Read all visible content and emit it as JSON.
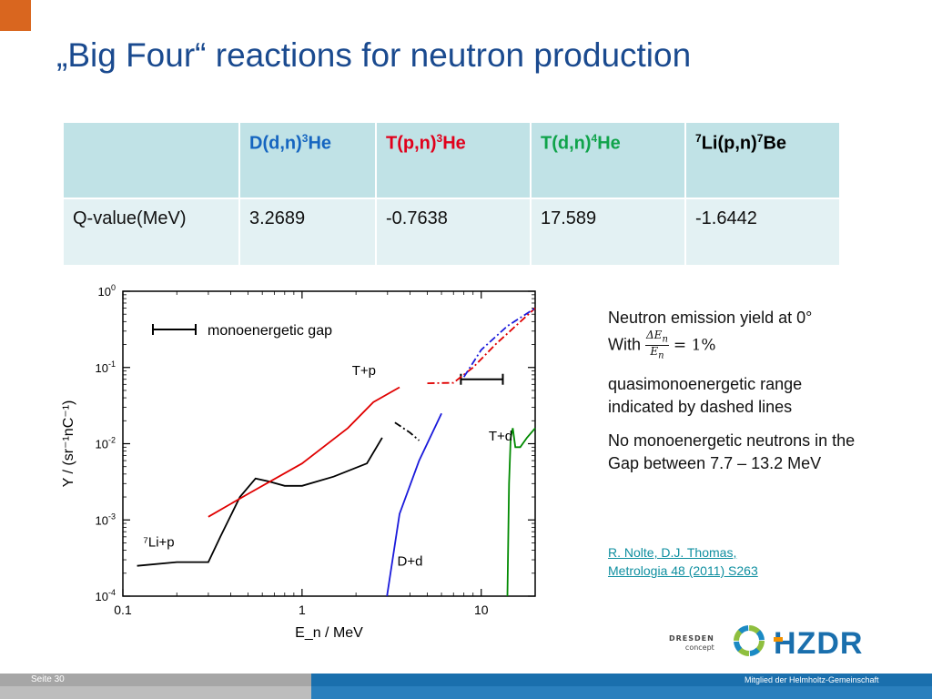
{
  "title": "„Big Four“ reactions for neutron production",
  "table": {
    "headers": [
      {
        "pre": "D(d,n)",
        "sup": "3",
        "post": "He",
        "color": "#1565c0"
      },
      {
        "pre": "T(p,n)",
        "sup": "3",
        "post": "He",
        "color": "#e0001b"
      },
      {
        "pre": "T(d,n)",
        "sup": "4",
        "post": "He",
        "color": "#0fa34a"
      },
      {
        "pre": "",
        "sup": "7",
        "mid": "Li(p,n)",
        "sup2": "7",
        "post": "Be",
        "color": "#000000"
      }
    ],
    "row_label": "Q-value(MeV)",
    "values": [
      "3.2689",
      "-0.7638",
      "17.589",
      "-1.6442"
    ]
  },
  "notes": {
    "line1": "Neutron emission yield at 0°",
    "with": "With",
    "frac_num": "ΔE",
    "frac_den": "E",
    "frac_sub": "n",
    "eq": "= 1%",
    "line3": "quasimonoenergetic range",
    "line4": "indicated by dashed lines",
    "line5": "No monoenergetic neutrons in the",
    "line6": "Gap between 7.7 – 13.2 MeV"
  },
  "reference": {
    "line1": "R. Nolte, D.J. Thomas,",
    "line2": "Metrologia 48 (2011) S263"
  },
  "logos": {
    "dresden_line1": "DRESDEN",
    "dresden_line2": "concept",
    "hzdr": "HZDR"
  },
  "footer": {
    "page": "Seite 30",
    "member": "Mitglied der Helmholtz-Gemeinschaft"
  },
  "chart_data": {
    "type": "line",
    "xlabel": "E_n / MeV",
    "ylabel": "Y / (sr⁻¹nC⁻¹)",
    "x_scale": "log",
    "y_scale": "log",
    "xlim": [
      0.1,
      20
    ],
    "ylim": [
      0.0001,
      1
    ],
    "x_ticks": [
      "0.1",
      "1",
      "10"
    ],
    "y_ticks": [
      "10^-4",
      "10^-3",
      "10^-2",
      "10^-1",
      "10^0"
    ],
    "legend": "monoenergetic gap",
    "series": [
      {
        "name": "⁷Li+p",
        "color": "#000000",
        "style": "solid/dash-dot",
        "x": [
          0.12,
          0.2,
          0.3,
          0.35,
          0.45,
          0.55,
          0.65,
          0.8,
          1.0,
          1.5,
          2.3,
          2.8,
          3.3,
          4.0,
          4.5
        ],
        "y": [
          0.00025,
          0.00028,
          0.00028,
          0.0006,
          0.002,
          0.0035,
          0.0032,
          0.0028,
          0.0028,
          0.0037,
          0.0055,
          0.012,
          0.019,
          0.014,
          0.011
        ]
      },
      {
        "name": "T+p",
        "color": "#e00000",
        "style": "solid/dash-dot",
        "x": [
          0.3,
          0.5,
          1.0,
          1.8,
          2.5,
          3.5,
          5.0,
          7.0,
          9.0,
          12.0,
          20.0
        ],
        "y": [
          0.0011,
          0.0022,
          0.0055,
          0.016,
          0.035,
          0.055,
          0.062,
          0.063,
          0.1,
          0.2,
          0.6
        ]
      },
      {
        "name": "D+d",
        "color": "#1a1adb",
        "style": "solid/dash-dot",
        "x": [
          2.98,
          3.5,
          4.5,
          6.0,
          8.0,
          10.0,
          14.0,
          20.0
        ],
        "y": [
          0.0001,
          0.0012,
          0.006,
          0.025,
          0.075,
          0.17,
          0.35,
          0.6
        ]
      },
      {
        "name": "T+d",
        "color": "#008a00",
        "style": "solid",
        "x": [
          14.0,
          14.3,
          14.6,
          15.0,
          15.5,
          16.5,
          18.0,
          20.0
        ],
        "y": [
          0.0001,
          0.003,
          0.012,
          0.016,
          0.009,
          0.009,
          0.012,
          0.016
        ]
      }
    ],
    "annotations": [
      "T+p",
      "T+d",
      "D+d",
      "⁷Li+p"
    ],
    "gap_marker": [
      7.7,
      13.2
    ]
  }
}
